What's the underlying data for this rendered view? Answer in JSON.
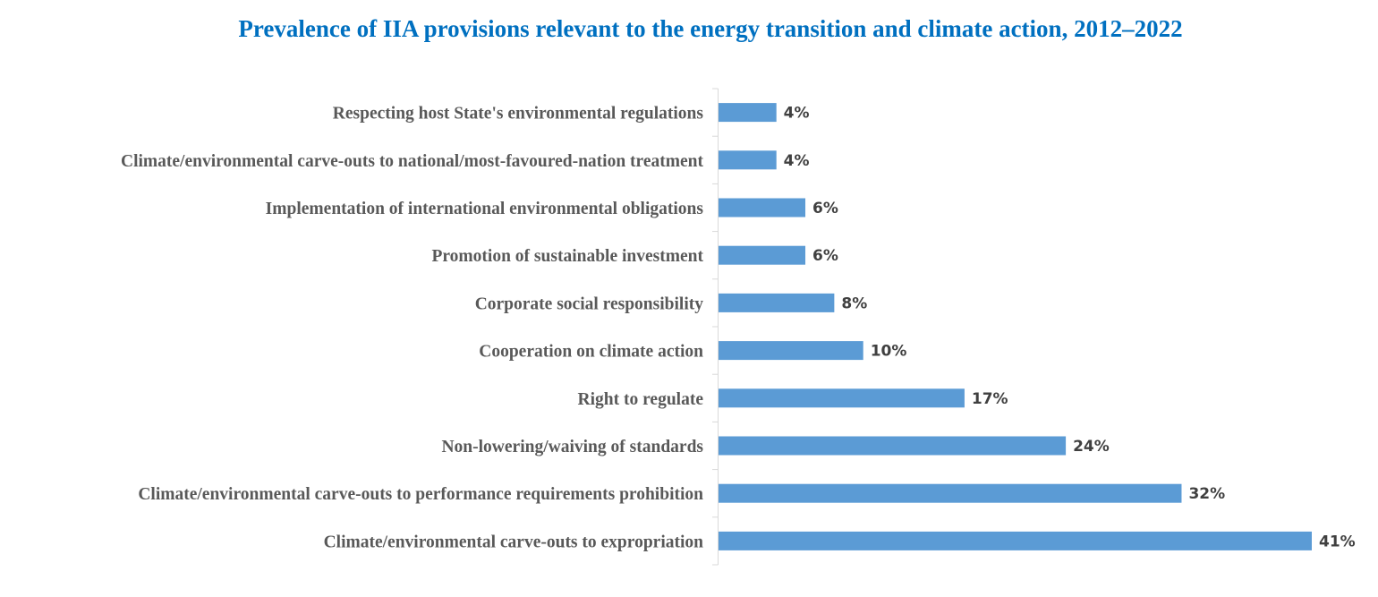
{
  "chart_data": {
    "type": "bar",
    "orientation": "horizontal",
    "title": "Prevalence of IIA provisions relevant to the energy transition and climate action, 2012–2022",
    "xlabel": "",
    "ylabel": "",
    "xlim": [
      0,
      41
    ],
    "grid": false,
    "legend": "none",
    "bar_color": "#5B9BD5",
    "title_color": "#0070C0",
    "value_suffix": "%",
    "categories": [
      "Respecting host State's environmental regulations",
      "Climate/environmental carve-outs to national/most-favoured-nation treatment",
      "Implementation of international environmental obligations",
      "Promotion of sustainable investment",
      "Corporate social responsibility",
      "Cooperation on climate action",
      "Right to regulate",
      "Non-lowering/waiving of standards",
      "Climate/environmental carve-outs to performance requirements prohibition",
      "Climate/environmental carve-outs to expropriation"
    ],
    "values": [
      4,
      4,
      6,
      6,
      8,
      10,
      17,
      24,
      32,
      41
    ],
    "value_labels": [
      "4%",
      "4%",
      "6%",
      "6%",
      "8%",
      "10%",
      "17%",
      "24%",
      "32%",
      "41%"
    ]
  }
}
